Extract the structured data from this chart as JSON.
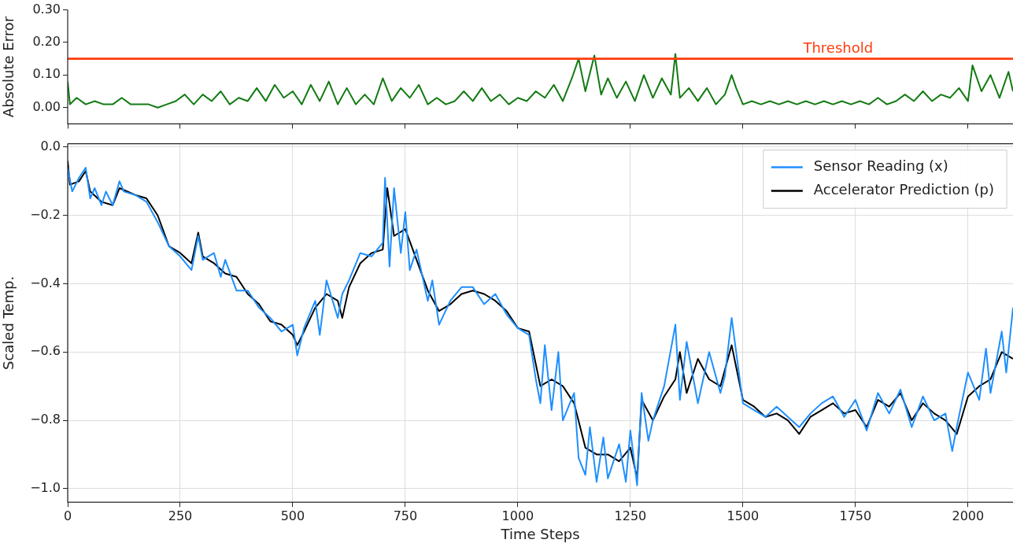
{
  "chart_data": [
    {
      "type": "line",
      "ylabel": "Absolute Error",
      "xlim": [
        0,
        2100
      ],
      "ylim": [
        -0.05,
        0.3
      ],
      "yticks": [
        {
          "value": 0,
          "label": "0.00"
        },
        {
          "value": 0.1,
          "label": "0.10"
        },
        {
          "value": 0.2,
          "label": "0.20"
        },
        {
          "value": 0.3,
          "label": "0.30"
        }
      ],
      "xticks": [
        {
          "value": 0,
          "label": null
        },
        {
          "value": 250,
          "label": null
        },
        {
          "value": 500,
          "label": null
        },
        {
          "value": 750,
          "label": null
        },
        {
          "value": 1000,
          "label": null
        },
        {
          "value": 1250,
          "label": null
        },
        {
          "value": 1500,
          "label": null
        },
        {
          "value": 1750,
          "label": null
        },
        {
          "value": 2000,
          "label": null
        }
      ],
      "tick_labels": "y",
      "grid": false,
      "legend": false,
      "ref_lines": [
        {
          "axis": "y",
          "value": 0.15,
          "label": "Threshold",
          "color": "#ff3d0d"
        }
      ],
      "series": [
        {
          "color": "#127a12",
          "x": [
            0,
            5,
            20,
            40,
            60,
            80,
            100,
            120,
            140,
            160,
            180,
            200,
            220,
            240,
            260,
            280,
            300,
            320,
            340,
            360,
            380,
            400,
            420,
            440,
            460,
            480,
            500,
            520,
            540,
            560,
            580,
            600,
            620,
            640,
            660,
            680,
            700,
            720,
            740,
            760,
            780,
            800,
            820,
            840,
            860,
            880,
            900,
            920,
            940,
            960,
            980,
            1000,
            1020,
            1040,
            1060,
            1080,
            1100,
            1120,
            1135,
            1150,
            1170,
            1185,
            1200,
            1220,
            1240,
            1260,
            1280,
            1300,
            1320,
            1340,
            1350,
            1360,
            1380,
            1400,
            1420,
            1440,
            1460,
            1475,
            1485,
            1500,
            1520,
            1540,
            1560,
            1580,
            1600,
            1620,
            1640,
            1660,
            1680,
            1700,
            1720,
            1740,
            1760,
            1780,
            1800,
            1820,
            1840,
            1860,
            1880,
            1900,
            1920,
            1940,
            1960,
            1980,
            2000,
            2010,
            2030,
            2050,
            2070,
            2090,
            2100
          ],
          "values": [
            0.08,
            0.01,
            0.03,
            0.01,
            0.02,
            0.01,
            0.01,
            0.03,
            0.01,
            0.01,
            0.01,
            0.0,
            0.01,
            0.02,
            0.04,
            0.01,
            0.04,
            0.02,
            0.05,
            0.01,
            0.03,
            0.02,
            0.06,
            0.02,
            0.07,
            0.03,
            0.05,
            0.01,
            0.07,
            0.02,
            0.08,
            0.01,
            0.06,
            0.01,
            0.04,
            0.01,
            0.09,
            0.02,
            0.06,
            0.03,
            0.07,
            0.01,
            0.03,
            0.01,
            0.02,
            0.05,
            0.02,
            0.06,
            0.02,
            0.04,
            0.01,
            0.03,
            0.02,
            0.05,
            0.03,
            0.07,
            0.02,
            0.09,
            0.15,
            0.05,
            0.16,
            0.04,
            0.09,
            0.03,
            0.08,
            0.02,
            0.1,
            0.03,
            0.09,
            0.04,
            0.165,
            0.03,
            0.06,
            0.02,
            0.06,
            0.01,
            0.04,
            0.1,
            0.06,
            0.01,
            0.02,
            0.01,
            0.02,
            0.01,
            0.02,
            0.01,
            0.02,
            0.01,
            0.02,
            0.01,
            0.02,
            0.01,
            0.02,
            0.01,
            0.03,
            0.01,
            0.02,
            0.04,
            0.02,
            0.05,
            0.02,
            0.04,
            0.03,
            0.06,
            0.02,
            0.13,
            0.05,
            0.1,
            0.03,
            0.11,
            0.05
          ]
        }
      ]
    },
    {
      "type": "line",
      "xlabel": "Time Steps",
      "ylabel": "Scaled Temp.",
      "xlim": [
        0,
        2100
      ],
      "ylim": [
        -1.04,
        0.01
      ],
      "xticks": [
        0,
        250,
        500,
        750,
        1000,
        1250,
        1500,
        1750,
        2000
      ],
      "yticks": [
        {
          "value": 0,
          "label": "0.0"
        },
        {
          "value": -0.2,
          "label": "−0.2"
        },
        {
          "value": -0.4,
          "label": "−0.4"
        },
        {
          "value": -0.6,
          "label": "−0.6"
        },
        {
          "value": -0.8,
          "label": "−0.8"
        },
        {
          "value": -1,
          "label": "−1.0"
        }
      ],
      "grid": true,
      "legend": "top right",
      "series": [
        {
          "name": "Sensor Reading (x)",
          "color": "#1e8fff",
          "x": [
            0,
            10,
            25,
            40,
            50,
            60,
            75,
            85,
            100,
            115,
            125,
            150,
            175,
            200,
            225,
            250,
            275,
            290,
            300,
            325,
            340,
            350,
            375,
            400,
            425,
            450,
            475,
            500,
            510,
            525,
            550,
            560,
            575,
            600,
            610,
            625,
            650,
            675,
            700,
            705,
            715,
            725,
            740,
            750,
            760,
            775,
            800,
            810,
            825,
            850,
            875,
            900,
            925,
            950,
            975,
            1000,
            1025,
            1040,
            1050,
            1060,
            1075,
            1090,
            1100,
            1125,
            1135,
            1150,
            1160,
            1175,
            1190,
            1200,
            1225,
            1240,
            1250,
            1265,
            1275,
            1290,
            1300,
            1325,
            1350,
            1360,
            1375,
            1400,
            1425,
            1450,
            1460,
            1475,
            1500,
            1525,
            1550,
            1575,
            1600,
            1625,
            1650,
            1675,
            1700,
            1725,
            1750,
            1775,
            1800,
            1825,
            1850,
            1875,
            1900,
            1925,
            1950,
            1965,
            1975,
            2000,
            2025,
            2040,
            2050,
            2075,
            2085,
            2100
          ],
          "values": [
            -0.06,
            -0.13,
            -0.09,
            -0.06,
            -0.15,
            -0.12,
            -0.17,
            -0.13,
            -0.17,
            -0.1,
            -0.13,
            -0.14,
            -0.16,
            -0.22,
            -0.29,
            -0.32,
            -0.36,
            -0.26,
            -0.33,
            -0.31,
            -0.38,
            -0.33,
            -0.42,
            -0.42,
            -0.47,
            -0.5,
            -0.54,
            -0.52,
            -0.61,
            -0.53,
            -0.45,
            -0.55,
            -0.39,
            -0.5,
            -0.43,
            -0.39,
            -0.31,
            -0.32,
            -0.28,
            -0.09,
            -0.35,
            -0.12,
            -0.31,
            -0.19,
            -0.36,
            -0.3,
            -0.45,
            -0.39,
            -0.52,
            -0.45,
            -0.41,
            -0.41,
            -0.46,
            -0.43,
            -0.49,
            -0.53,
            -0.55,
            -0.68,
            -0.75,
            -0.58,
            -0.77,
            -0.6,
            -0.8,
            -0.72,
            -0.91,
            -0.96,
            -0.82,
            -0.98,
            -0.85,
            -0.97,
            -0.87,
            -0.98,
            -0.83,
            -0.99,
            -0.72,
            -0.86,
            -0.8,
            -0.7,
            -0.52,
            -0.74,
            -0.57,
            -0.75,
            -0.6,
            -0.72,
            -0.67,
            -0.5,
            -0.75,
            -0.77,
            -0.79,
            -0.76,
            -0.79,
            -0.82,
            -0.78,
            -0.75,
            -0.73,
            -0.79,
            -0.74,
            -0.83,
            -0.72,
            -0.78,
            -0.71,
            -0.82,
            -0.73,
            -0.8,
            -0.78,
            -0.89,
            -0.82,
            -0.66,
            -0.74,
            -0.59,
            -0.72,
            -0.54,
            -0.66,
            -0.47
          ]
        },
        {
          "name": "Accelerator Prediction (p)",
          "color": "#000000",
          "x": [
            0,
            5,
            25,
            40,
            50,
            75,
            100,
            115,
            150,
            175,
            200,
            225,
            250,
            275,
            290,
            300,
            325,
            350,
            375,
            400,
            425,
            450,
            475,
            500,
            510,
            525,
            550,
            575,
            600,
            610,
            625,
            650,
            675,
            700,
            710,
            725,
            750,
            775,
            800,
            825,
            850,
            875,
            900,
            925,
            950,
            975,
            1000,
            1025,
            1050,
            1075,
            1100,
            1125,
            1150,
            1175,
            1200,
            1225,
            1250,
            1265,
            1275,
            1300,
            1325,
            1350,
            1360,
            1375,
            1400,
            1425,
            1450,
            1475,
            1500,
            1525,
            1550,
            1575,
            1600,
            1625,
            1650,
            1675,
            1700,
            1725,
            1750,
            1775,
            1800,
            1825,
            1850,
            1875,
            1900,
            1925,
            1950,
            1975,
            2000,
            2025,
            2050,
            2075,
            2100
          ],
          "values": [
            -0.04,
            -0.11,
            -0.1,
            -0.07,
            -0.13,
            -0.16,
            -0.17,
            -0.12,
            -0.14,
            -0.15,
            -0.2,
            -0.29,
            -0.31,
            -0.34,
            -0.25,
            -0.32,
            -0.34,
            -0.37,
            -0.38,
            -0.43,
            -0.46,
            -0.51,
            -0.52,
            -0.55,
            -0.58,
            -0.54,
            -0.47,
            -0.43,
            -0.45,
            -0.5,
            -0.41,
            -0.34,
            -0.31,
            -0.3,
            -0.12,
            -0.26,
            -0.24,
            -0.33,
            -0.42,
            -0.48,
            -0.46,
            -0.43,
            -0.42,
            -0.43,
            -0.45,
            -0.48,
            -0.53,
            -0.54,
            -0.7,
            -0.68,
            -0.7,
            -0.75,
            -0.88,
            -0.9,
            -0.9,
            -0.92,
            -0.88,
            -0.97,
            -0.74,
            -0.8,
            -0.73,
            -0.68,
            -0.6,
            -0.72,
            -0.62,
            -0.68,
            -0.7,
            -0.58,
            -0.74,
            -0.76,
            -0.79,
            -0.78,
            -0.8,
            -0.84,
            -0.79,
            -0.77,
            -0.75,
            -0.78,
            -0.77,
            -0.82,
            -0.74,
            -0.76,
            -0.72,
            -0.8,
            -0.75,
            -0.78,
            -0.8,
            -0.84,
            -0.73,
            -0.7,
            -0.68,
            -0.6,
            -0.62
          ]
        }
      ]
    }
  ]
}
